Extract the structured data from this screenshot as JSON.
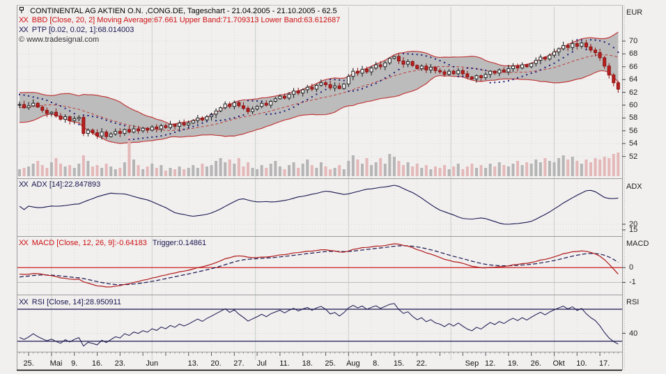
{
  "header": {
    "title": "CONTINENTAL AG AKTIEN O.N. ,CONG.DE, Tageschart - 21.04.2005 - 21.10.2005 - 62.5",
    "remove_icon": "XX",
    "bbd_label": "BBD [Close, 20, 2] Moving Average:67.661 Upper Band:71.709313 Lower Band:63.612687",
    "ptp_label": "PTP [0.02, 0.02, 1]:68.014003",
    "copyright_symbol": "©",
    "watermark": "www.tradesignal.com"
  },
  "axes": {
    "price": {
      "unit": "EUR",
      "ticks": [
        70,
        68,
        66,
        64,
        62,
        60,
        58,
        56,
        54,
        52
      ]
    },
    "adx": {
      "title": "ADX",
      "label": "ADX [14]:22.847893",
      "ticks": [
        20,
        15
      ]
    },
    "macd": {
      "title": "MACD",
      "label": "MACD [Close, 12, 26, 9]:-0.64183",
      "trigger_label": "Trigger:0.14861",
      "ticks": [
        0,
        -1
      ]
    },
    "rsi": {
      "title": "RSI",
      "label": "RSI [Close, 14]:28.950911",
      "ticks": [
        40
      ],
      "levels": [
        70,
        30
      ]
    },
    "x_labels": [
      {
        "text": "25.",
        "day": 2
      },
      {
        "text": "Mai",
        "day": 8
      },
      {
        "text": "9.",
        "day": 12
      },
      {
        "text": "16.",
        "day": 17
      },
      {
        "text": "23.",
        "day": 22
      },
      {
        "text": "Jun",
        "day": 29
      },
      {
        "text": "13.",
        "day": 38
      },
      {
        "text": "20.",
        "day": 43
      },
      {
        "text": "27.",
        "day": 48
      },
      {
        "text": "Jul",
        "day": 53
      },
      {
        "text": "11.",
        "day": 58
      },
      {
        "text": "18.",
        "day": 63
      },
      {
        "text": "25.",
        "day": 68
      },
      {
        "text": "Aug",
        "day": 73
      },
      {
        "text": "8.",
        "day": 78
      },
      {
        "text": "15.",
        "day": 83
      },
      {
        "text": "22.",
        "day": 88
      },
      {
        "text": "Sep",
        "day": 99
      },
      {
        "text": "12.",
        "day": 103
      },
      {
        "text": "19.",
        "day": 108
      },
      {
        "text": "26.",
        "day": 113
      },
      {
        "text": "Okt",
        "day": 118
      },
      {
        "text": "10.",
        "day": 123
      },
      {
        "text": "17.",
        "day": 128
      }
    ],
    "month_start_days": [
      7,
      29,
      51.6,
      72,
      94.4,
      117
    ]
  },
  "colors": {
    "up_candle": "#ffffff",
    "up_stroke": "#222222",
    "down_candle": "#bb2020",
    "down_stroke": "#8a1010",
    "band_fill": "#bcbcbc",
    "band_line": "#c03a3a",
    "psar": "#1a1a7a",
    "adx_line": "#15154d",
    "macd_line": "#b01818",
    "trigger_line": "#15154d",
    "rsi_line": "#15154d",
    "zero_line": "#cc2222",
    "vol_up": "#b5b5b5",
    "vol_down": "#e4b8b8",
    "grid_dot": "#d8d3d3",
    "month_line": "#c9d2c9",
    "separator": "#9a9a9a",
    "axis_line": "#000000"
  },
  "chart_data": {
    "type": "candlestick",
    "title": "CONTINENTAL AG AKTIEN O.N. ,CONG.DE, Tageschart - 21.04.2005 - 21.10.2005 - 62.5",
    "price_unit": "EUR",
    "x_range": [
      "21.04.2005",
      "21.10.2005"
    ],
    "ylim": [
      51.5,
      71.5
    ],
    "last_price": 62.5,
    "indicators": {
      "bollinger": {
        "period": 20,
        "mult": 2,
        "moving_average": 67.661,
        "upper_band": 71.709313,
        "lower_band": 63.612687
      },
      "ptp": {
        "params": [
          0.02,
          0.02,
          1
        ],
        "value": 68.014003
      },
      "adx": {
        "period": 14,
        "value": 22.847893
      },
      "macd": {
        "params": [
          12,
          26,
          9
        ],
        "value": -0.64183,
        "trigger": 0.14861
      },
      "rsi": {
        "period": 14,
        "value": 28.950911
      }
    },
    "pre_closes": [
      64.5,
      63.8,
      63.0,
      62.2,
      61.5,
      60.8,
      60.0,
      59.4,
      58.8,
      58.2,
      57.8,
      57.5,
      57.9,
      58.4,
      59.0,
      59.6,
      60.2,
      60.8,
      61.3,
      61.0,
      60.6,
      60.9,
      60.4,
      60.7,
      60.2,
      60.0
    ],
    "closes": [
      60.1,
      59.6,
      59.9,
      60.3,
      59.7,
      59.2,
      58.7,
      58.9,
      58.3,
      57.8,
      58.2,
      57.6,
      57.9,
      58.1,
      55.6,
      56.1,
      55.7,
      55.2,
      55.8,
      55.1,
      55.5,
      55.9,
      55.6,
      56.2,
      55.8,
      56.3,
      56.0,
      56.4,
      56.1,
      56.6,
      56.3,
      56.8,
      56.5,
      57.0,
      56.7,
      57.2,
      56.9,
      57.2,
      57.6,
      58.0,
      57.7,
      58.2,
      58.6,
      59.1,
      59.6,
      60.2,
      59.8,
      60.4,
      59.9,
      59.5,
      59.0,
      59.4,
      59.8,
      60.3,
      60.0,
      60.6,
      61.0,
      61.4,
      61.1,
      61.7,
      62.2,
      61.9,
      62.4,
      62.8,
      62.5,
      63.1,
      63.5,
      63.2,
      62.7,
      63.0,
      62.6,
      63.3,
      64.5,
      65.3,
      65.0,
      65.6,
      65.2,
      65.8,
      66.3,
      66.0,
      66.6,
      67.3,
      67.6,
      66.9,
      66.4,
      66.8,
      66.2,
      65.7,
      66.1,
      65.5,
      65.9,
      65.4,
      65.2,
      64.8,
      65.3,
      64.9,
      65.4,
      64.9,
      64.4,
      64.1,
      64.6,
      64.3,
      64.8,
      65.3,
      65.0,
      65.5,
      65.2,
      65.7,
      66.1,
      65.8,
      66.3,
      66.0,
      66.5,
      67.0,
      67.5,
      67.2,
      67.8,
      68.3,
      68.8,
      69.3,
      69.0,
      69.6,
      69.2,
      69.7,
      69.1,
      68.6,
      68.2,
      67.4,
      66.1,
      64.7,
      63.5,
      62.5
    ],
    "volumes": [
      10,
      12,
      14,
      18,
      22,
      16,
      12,
      20,
      26,
      18,
      14,
      16,
      12,
      18,
      30,
      22,
      14,
      16,
      12,
      18,
      14,
      10,
      12,
      20,
      58,
      24,
      16,
      10,
      14,
      18,
      12,
      16,
      8,
      12,
      10,
      14,
      10,
      12,
      16,
      12,
      18,
      14,
      16,
      22,
      26,
      20,
      24,
      18,
      26,
      14,
      20,
      12,
      10,
      16,
      12,
      18,
      22,
      14,
      10,
      16,
      20,
      12,
      18,
      24,
      16,
      12,
      20,
      14,
      10,
      12,
      16,
      10,
      22,
      30,
      24,
      18,
      26,
      16,
      20,
      26,
      18,
      32,
      28,
      22,
      16,
      20,
      14,
      18,
      12,
      16,
      10,
      14,
      12,
      16,
      10,
      14,
      18,
      10,
      14,
      18,
      12,
      16,
      12,
      18,
      14,
      20,
      16,
      14,
      18,
      22,
      16,
      20,
      18,
      24,
      20,
      26,
      22,
      20,
      26,
      30,
      24,
      28,
      22,
      18,
      24,
      20,
      26,
      24,
      28,
      26,
      32,
      34
    ]
  }
}
